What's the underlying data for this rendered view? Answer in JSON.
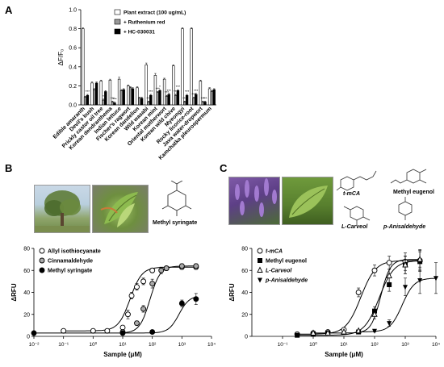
{
  "panels": {
    "a": {
      "letter": "A"
    },
    "b": {
      "letter": "B"
    },
    "c": {
      "letter": "C"
    }
  },
  "structures": {
    "b": [
      "Methyl syringate"
    ],
    "c_tmca": "t-mCA",
    "c_methyl_eugenol": "Methyl eugenol",
    "c_carveol": "L-Carveol",
    "c_anisaldehyde": "p-Anisaldehyde"
  },
  "chart_data": [
    {
      "type": "bar",
      "ylabel": "ΔF/F₀",
      "ylim": [
        0,
        1.0
      ],
      "yticks": [
        "0.0",
        "0.2",
        "0.4",
        "0.6",
        "0.8",
        "1.0"
      ],
      "categories": [
        "Edible amaranth",
        "Devil's bush",
        "Prickly castor oil tree",
        "Korean dendranthema",
        "Indian lettuce",
        "Fischer's ragwort",
        "Korean dandelion",
        "Wild wasabi",
        "Korean mint",
        "Oriental motherwort",
        "Korean wild chive",
        "Myeongyi",
        "Rocky licorice-root",
        "Java water-dropwort",
        "Kamchatka pleurospermum"
      ],
      "series": [
        {
          "name": "Plant extract (100 ug/mL)",
          "color": "#ffffff",
          "values": [
            0.8,
            0.23,
            0.25,
            0.26,
            0.27,
            0.2,
            0.18,
            0.42,
            0.31,
            0.27,
            0.41,
            0.8,
            0.8,
            0.25,
            0.17
          ],
          "errors": [
            0.01,
            0.01,
            0.01,
            0.01,
            0.02,
            0.01,
            0.01,
            0.02,
            0.02,
            0.01,
            0.01,
            0.01,
            0.01,
            0.01,
            0.01
          ]
        },
        {
          "name": "+ Ruthenium red",
          "color": "#999999",
          "values": [
            0.08,
            0.16,
            0.05,
            0.03,
            0.15,
            0.18,
            0.07,
            0.03,
            0.13,
            0.09,
            0.1,
            0.03,
            0.07,
            0.03,
            0.14
          ],
          "errors": [
            0.01,
            0.01,
            0.01,
            0.01,
            0.01,
            0.01,
            0.01,
            0.01,
            0.01,
            0.01,
            0.01,
            0.01,
            0.01,
            0.01,
            0.01
          ]
        },
        {
          "name": "+ HC-030031",
          "color": "#000000",
          "values": [
            0.1,
            0.23,
            0.14,
            0.02,
            0.16,
            0.17,
            0.07,
            0.1,
            0.15,
            0.11,
            0.15,
            0.1,
            0.11,
            0.03,
            0.16
          ],
          "errors": [
            0.01,
            0.01,
            0.01,
            0.01,
            0.01,
            0.01,
            0.01,
            0.01,
            0.01,
            0.01,
            0.01,
            0.01,
            0.01,
            0.01,
            0.01
          ]
        }
      ],
      "significance": [
        [
          "",
          "***"
        ],
        [
          "",
          ""
        ],
        [
          "*",
          ""
        ],
        [
          "***",
          "***"
        ],
        [
          "",
          ""
        ],
        [
          "",
          ""
        ],
        [
          "",
          ""
        ],
        [
          "***",
          "***"
        ],
        [
          "***",
          "*"
        ],
        [
          "***",
          "***"
        ],
        [
          "***",
          "***"
        ],
        [
          "***",
          "***"
        ],
        [
          "***",
          "***"
        ],
        [
          "***",
          "***"
        ],
        [
          "",
          ""
        ]
      ]
    },
    {
      "type": "line",
      "xlabel": "Sample (μM)",
      "ylabel": "ΔRFU",
      "xscale": "log",
      "xlim": [
        0.01,
        10000
      ],
      "ylim": [
        0,
        80
      ],
      "xticks": [
        "10⁻²",
        "10⁻¹",
        "10⁰",
        "10¹",
        "10²",
        "10³",
        "10⁴"
      ],
      "yticks": [
        "0",
        "20",
        "40",
        "60",
        "80"
      ],
      "legend": "top-left",
      "series": [
        {
          "name": "Allyl isothiocyanate",
          "marker": "circle-open",
          "x": [
            0.1,
            1,
            3,
            10,
            15,
            20,
            30,
            50,
            100,
            300,
            1000,
            3000
          ],
          "y": [
            5,
            5,
            5,
            8,
            20,
            37,
            45,
            50,
            60,
            62,
            63,
            63
          ],
          "err": [
            0,
            0,
            0,
            1,
            4,
            3,
            3,
            3,
            2,
            2,
            2,
            2
          ]
        },
        {
          "name": "Cinnamaldehyde",
          "marker": "circle-gray",
          "x": [
            10,
            30,
            50,
            100,
            200,
            300,
            1000,
            3000
          ],
          "y": [
            4,
            12,
            25,
            48,
            60,
            62,
            64,
            64
          ],
          "err": [
            0,
            2,
            3,
            4,
            3,
            2,
            2,
            2
          ]
        },
        {
          "name": "Methyl syringate",
          "marker": "circle-filled",
          "x": [
            0.01,
            10,
            100,
            1000,
            3000
          ],
          "y": [
            3,
            3,
            4,
            30,
            34
          ],
          "err": [
            0,
            0,
            1,
            3,
            5
          ]
        }
      ]
    },
    {
      "type": "line",
      "xlabel": "Sample (μM)",
      "ylabel": "ΔRFU",
      "xscale": "log",
      "xlim": [
        0.01,
        10000
      ],
      "ylim": [
        0,
        80
      ],
      "xticks": [
        "10⁻¹",
        "10⁰",
        "10¹",
        "10²",
        "10³",
        "10⁴"
      ],
      "yticks": [
        "0",
        "20",
        "40",
        "60",
        "80"
      ],
      "legend": "top-left",
      "series": [
        {
          "name": "t-mCA",
          "marker": "circle-open",
          "x": [
            0.3,
            1,
            3,
            10,
            30,
            100,
            300,
            1000,
            3000
          ],
          "y": [
            2,
            3,
            4,
            6,
            40,
            60,
            67,
            68,
            69
          ],
          "err": [
            0,
            0,
            1,
            1,
            4,
            5,
            6,
            8,
            9
          ]
        },
        {
          "name": "Methyl eugenol",
          "marker": "square-filled",
          "x": [
            0.3,
            1,
            3,
            30,
            100,
            300,
            1000,
            3000
          ],
          "y": [
            1,
            2,
            3,
            4,
            23,
            47,
            65,
            68
          ],
          "err": [
            0,
            0,
            0,
            1,
            4,
            6,
            8,
            9
          ]
        },
        {
          "name": "L-Carveol",
          "marker": "triangle-up-open",
          "x": [
            1,
            3,
            10,
            30,
            100,
            300,
            1000,
            3000
          ],
          "y": [
            3,
            3,
            4,
            5,
            20,
            55,
            65,
            70
          ],
          "err": [
            0,
            0,
            0,
            1,
            4,
            6,
            8,
            9
          ]
        },
        {
          "name": "p-Anisaldehyde",
          "marker": "triangle-down-filled",
          "x": [
            100,
            300,
            1000,
            3000,
            10000
          ],
          "y": [
            5,
            12,
            45,
            51,
            53
          ],
          "err": [
            1,
            3,
            8,
            12,
            14
          ]
        }
      ]
    }
  ]
}
